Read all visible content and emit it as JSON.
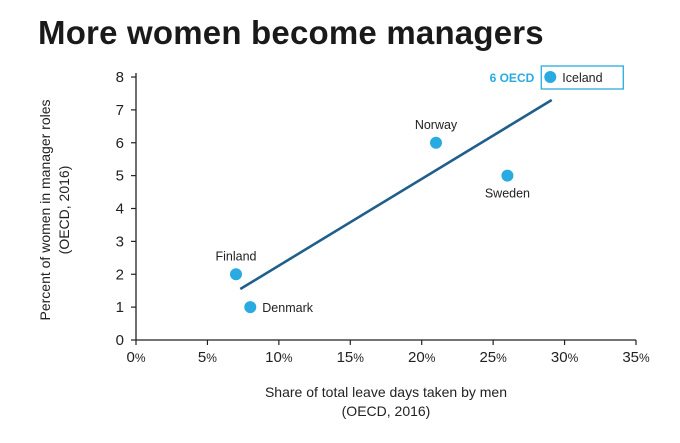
{
  "title": "More women become managers",
  "colors": {
    "point": "#29abe2",
    "trend": "#1f5f8b",
    "axis": "#222222",
    "highlight_box": "#29abe2"
  },
  "chart_data": {
    "type": "scatter",
    "title": "More women become managers",
    "xlabel": [
      "Share of total leave days taken by men",
      "(OECD, 2016)"
    ],
    "ylabel": [
      "Percent of women in manager roles",
      "(OECD, 2016)"
    ],
    "xlim": [
      0,
      35
    ],
    "ylim": [
      0,
      8
    ],
    "x_ticks": [
      0,
      5,
      10,
      15,
      20,
      25,
      30,
      35
    ],
    "x_tick_suffix": "%",
    "y_ticks": [
      0,
      1,
      2,
      3,
      4,
      5,
      6,
      7,
      8
    ],
    "grid": false,
    "points": [
      {
        "label": "Finland",
        "x": 7,
        "y": 2,
        "label_pos": "above"
      },
      {
        "label": "Denmark",
        "x": 8,
        "y": 1,
        "label_pos": "right"
      },
      {
        "label": "Norway",
        "x": 21,
        "y": 6,
        "label_pos": "above"
      },
      {
        "label": "Sweden",
        "x": 26,
        "y": 5,
        "label_pos": "below"
      },
      {
        "label": "Iceland",
        "x": 29,
        "y": 8,
        "label_pos": "right",
        "highlight": true
      }
    ],
    "trendline": {
      "x": [
        7.3,
        29.1
      ],
      "y": [
        1.55,
        7.3
      ]
    },
    "annotation": {
      "text": "6 OECD",
      "near": "Iceland"
    }
  }
}
